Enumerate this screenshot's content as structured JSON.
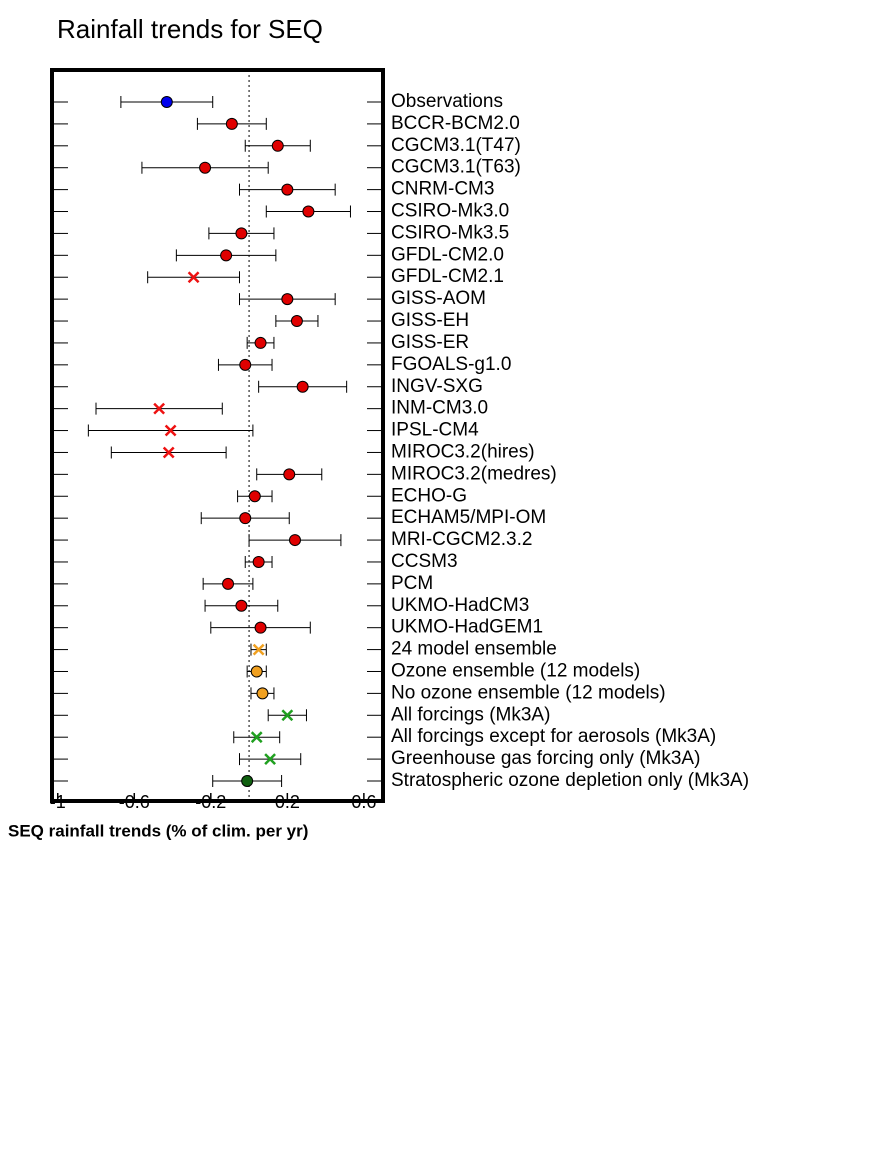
{
  "chart_data": {
    "type": "dot",
    "title": "Rainfall trends for SEQ",
    "x_label": "SEQ rainfall trends (% of clim. per yr)",
    "categories": [
      "Observations",
      "BCCR-BCM2.0",
      "CGCM3.1(T47)",
      "CGCM3.1(T63)",
      "CNRM-CM3",
      "CSIRO-Mk3.0",
      "CSIRO-Mk3.5",
      "GFDL-CM2.0",
      "GFDL-CM2.1",
      "GISS-AOM",
      "GISS-EH",
      "GISS-ER",
      "FGOALS-g1.0",
      "INGV-SXG",
      "INM-CM3.0",
      "IPSL-CM4",
      "MIROC3.2(hires)",
      "MIROC3.2(medres)",
      "ECHO-G",
      "ECHAM5/MPI-OM",
      "MRI-CGCM2.3.2",
      "CCSM3",
      "PCM",
      "UKMO-HadCM3",
      "UKMO-HadGEM1",
      "24 model ensemble",
      "Ozone ensemble (12 models)",
      "No ozone ensemble (12 models)",
      "All forcings (Mk3A)",
      "All forcings except for aerosols (Mk3A)",
      "Greenhouse gas forcing only (Mk3A)",
      "Stratospheric ozone depletion only (Mk3A)"
    ],
    "values": [
      -0.43,
      -0.09,
      0.15,
      -0.23,
      0.2,
      0.31,
      -0.04,
      -0.12,
      -0.29,
      0.2,
      0.25,
      0.06,
      -0.02,
      0.28,
      -0.47,
      -0.41,
      -0.42,
      0.21,
      0.03,
      -0.02,
      0.24,
      0.05,
      -0.11,
      -0.04,
      0.06,
      0.05,
      0.04,
      0.07,
      0.2,
      0.04,
      0.11,
      -0.01
    ],
    "errors": [
      0.24,
      0.18,
      0.17,
      0.33,
      0.25,
      0.22,
      0.17,
      0.26,
      0.24,
      0.25,
      0.11,
      0.07,
      0.14,
      0.23,
      0.33,
      0.43,
      0.3,
      0.17,
      0.09,
      0.23,
      0.24,
      0.07,
      0.13,
      0.19,
      0.26,
      0.04,
      0.05,
      0.06,
      0.1,
      0.12,
      0.16,
      0.18
    ],
    "markers": [
      "circle",
      "circle",
      "circle",
      "circle",
      "circle",
      "circle",
      "circle",
      "circle",
      "cross",
      "circle",
      "circle",
      "circle",
      "circle",
      "circle",
      "cross",
      "cross",
      "cross",
      "circle",
      "circle",
      "circle",
      "circle",
      "circle",
      "circle",
      "circle",
      "circle",
      "cross",
      "circle",
      "circle",
      "cross",
      "cross",
      "cross",
      "circle"
    ],
    "colors": [
      "#0000ee",
      "#e00000",
      "#e00000",
      "#e00000",
      "#e00000",
      "#e00000",
      "#e00000",
      "#e00000",
      "#ee1111",
      "#e00000",
      "#e00000",
      "#e00000",
      "#e00000",
      "#e00000",
      "#ee1111",
      "#ee1111",
      "#ee1111",
      "#e00000",
      "#e00000",
      "#e00000",
      "#e00000",
      "#e00000",
      "#e00000",
      "#e00000",
      "#e00000",
      "#f0a020",
      "#f0a020",
      "#f0a020",
      "#20a020",
      "#20a020",
      "#20a020",
      "#106010"
    ],
    "reference_line": 0,
    "xlim": [
      -1.03,
      0.7
    ],
    "xticks": [
      -1,
      -0.6,
      -0.2,
      0.2,
      0.6
    ]
  }
}
